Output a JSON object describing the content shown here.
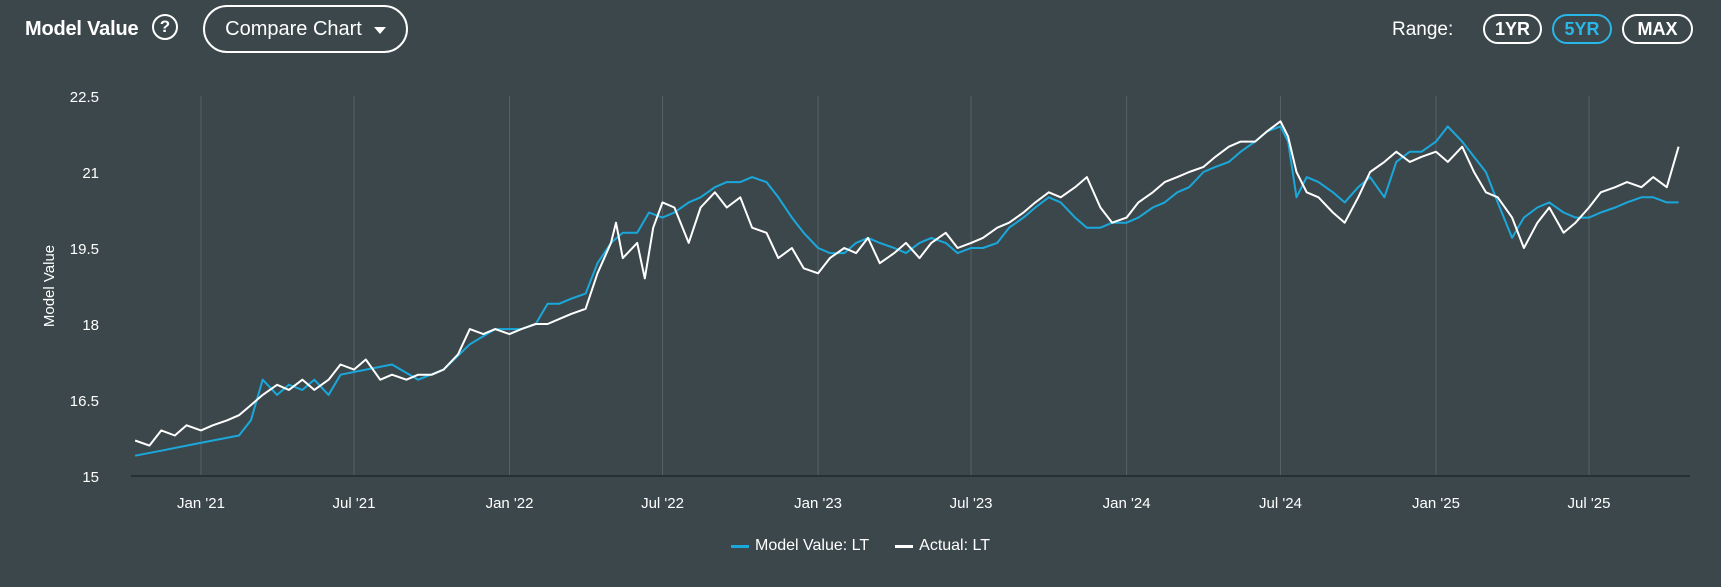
{
  "header": {
    "title": "Model Value",
    "help_glyph": "?",
    "compare_label": "Compare Chart",
    "range_label": "Range:",
    "range_options": [
      "1YR",
      "5YR",
      "MAX"
    ],
    "range_selected": "5YR"
  },
  "colors": {
    "background": "#3c474b",
    "model": "#1aa8dc",
    "actual": "#ffffff",
    "grid": "#55616a"
  },
  "chart_data": {
    "type": "line",
    "xlabel": "",
    "ylabel": "Model Value",
    "ylim": [
      15,
      22.5
    ],
    "yticks": [
      "15",
      "16.5",
      "18",
      "19.5",
      "21",
      "22.5"
    ],
    "xticks": [
      "Jan '21",
      "Jul '21",
      "Jan '22",
      "Jul '22",
      "Jan '23",
      "Jul '23",
      "Jan '24",
      "Jul '24",
      "Jan '25",
      "Jul '25"
    ],
    "xtick_dates": [
      "2021-01-01",
      "2021-07-01",
      "2022-01-01",
      "2022-07-01",
      "2023-01-01",
      "2023-07-01",
      "2024-01-01",
      "2024-07-01",
      "2025-01-01",
      "2025-07-01"
    ],
    "grid": "vertical",
    "legend_position": "bottom-center",
    "series": [
      {
        "name": "Model Value: LT",
        "color": "#1aa8dc",
        "points": [
          [
            "2020-10-15",
            15.4
          ],
          [
            "2020-11-15",
            15.5
          ],
          [
            "2020-12-15",
            15.6
          ],
          [
            "2021-01-15",
            15.7
          ],
          [
            "2021-02-15",
            15.8
          ],
          [
            "2021-03-01",
            16.1
          ],
          [
            "2021-03-15",
            16.9
          ],
          [
            "2021-04-01",
            16.6
          ],
          [
            "2021-04-15",
            16.8
          ],
          [
            "2021-05-01",
            16.7
          ],
          [
            "2021-05-15",
            16.9
          ],
          [
            "2021-06-01",
            16.6
          ],
          [
            "2021-06-15",
            17.0
          ],
          [
            "2021-07-15",
            17.1
          ],
          [
            "2021-08-15",
            17.2
          ],
          [
            "2021-09-15",
            16.9
          ],
          [
            "2021-10-15",
            17.1
          ],
          [
            "2021-11-15",
            17.6
          ],
          [
            "2021-12-15",
            17.9
          ],
          [
            "2022-01-15",
            17.9
          ],
          [
            "2022-02-01",
            18.0
          ],
          [
            "2022-02-15",
            18.4
          ],
          [
            "2022-03-01",
            18.4
          ],
          [
            "2022-03-15",
            18.5
          ],
          [
            "2022-04-01",
            18.6
          ],
          [
            "2022-04-15",
            19.2
          ],
          [
            "2022-05-01",
            19.6
          ],
          [
            "2022-05-15",
            19.8
          ],
          [
            "2022-06-01",
            19.8
          ],
          [
            "2022-06-15",
            20.2
          ],
          [
            "2022-07-01",
            20.1
          ],
          [
            "2022-07-15",
            20.2
          ],
          [
            "2022-08-01",
            20.4
          ],
          [
            "2022-08-15",
            20.5
          ],
          [
            "2022-09-01",
            20.7
          ],
          [
            "2022-09-15",
            20.8
          ],
          [
            "2022-10-01",
            20.8
          ],
          [
            "2022-10-15",
            20.9
          ],
          [
            "2022-11-01",
            20.8
          ],
          [
            "2022-11-15",
            20.5
          ],
          [
            "2022-12-01",
            20.1
          ],
          [
            "2022-12-15",
            19.8
          ],
          [
            "2023-01-01",
            19.5
          ],
          [
            "2023-01-15",
            19.4
          ],
          [
            "2023-02-01",
            19.4
          ],
          [
            "2023-02-15",
            19.6
          ],
          [
            "2023-03-01",
            19.7
          ],
          [
            "2023-03-15",
            19.6
          ],
          [
            "2023-04-01",
            19.5
          ],
          [
            "2023-04-15",
            19.4
          ],
          [
            "2023-05-01",
            19.6
          ],
          [
            "2023-05-15",
            19.7
          ],
          [
            "2023-06-01",
            19.6
          ],
          [
            "2023-06-15",
            19.4
          ],
          [
            "2023-07-01",
            19.5
          ],
          [
            "2023-07-15",
            19.5
          ],
          [
            "2023-08-01",
            19.6
          ],
          [
            "2023-08-15",
            19.9
          ],
          [
            "2023-09-01",
            20.1
          ],
          [
            "2023-09-15",
            20.3
          ],
          [
            "2023-10-01",
            20.5
          ],
          [
            "2023-10-15",
            20.4
          ],
          [
            "2023-11-01",
            20.1
          ],
          [
            "2023-11-15",
            19.9
          ],
          [
            "2023-12-01",
            19.9
          ],
          [
            "2023-12-15",
            20.0
          ],
          [
            "2024-01-01",
            20.0
          ],
          [
            "2024-01-15",
            20.1
          ],
          [
            "2024-02-01",
            20.3
          ],
          [
            "2024-02-15",
            20.4
          ],
          [
            "2024-03-01",
            20.6
          ],
          [
            "2024-03-15",
            20.7
          ],
          [
            "2024-04-01",
            21.0
          ],
          [
            "2024-04-15",
            21.1
          ],
          [
            "2024-05-01",
            21.2
          ],
          [
            "2024-05-15",
            21.4
          ],
          [
            "2024-06-01",
            21.6
          ],
          [
            "2024-06-15",
            21.8
          ],
          [
            "2024-07-01",
            21.9
          ],
          [
            "2024-07-10",
            21.6
          ],
          [
            "2024-07-20",
            20.5
          ],
          [
            "2024-08-01",
            20.9
          ],
          [
            "2024-08-15",
            20.8
          ],
          [
            "2024-09-01",
            20.6
          ],
          [
            "2024-09-15",
            20.4
          ],
          [
            "2024-10-01",
            20.7
          ],
          [
            "2024-10-15",
            20.9
          ],
          [
            "2024-11-01",
            20.5
          ],
          [
            "2024-11-15",
            21.2
          ],
          [
            "2024-12-01",
            21.4
          ],
          [
            "2024-12-15",
            21.4
          ],
          [
            "2025-01-01",
            21.6
          ],
          [
            "2025-01-15",
            21.9
          ],
          [
            "2025-02-01",
            21.6
          ],
          [
            "2025-02-15",
            21.3
          ],
          [
            "2025-03-01",
            21.0
          ],
          [
            "2025-03-15",
            20.4
          ],
          [
            "2025-04-01",
            19.7
          ],
          [
            "2025-04-15",
            20.1
          ],
          [
            "2025-05-01",
            20.3
          ],
          [
            "2025-05-15",
            20.4
          ],
          [
            "2025-06-01",
            20.2
          ],
          [
            "2025-06-15",
            20.1
          ],
          [
            "2025-07-01",
            20.1
          ],
          [
            "2025-07-15",
            20.2
          ],
          [
            "2025-08-01",
            20.3
          ],
          [
            "2025-08-15",
            20.4
          ],
          [
            "2025-09-01",
            20.5
          ],
          [
            "2025-09-15",
            20.5
          ],
          [
            "2025-10-01",
            20.4
          ],
          [
            "2025-10-15",
            20.4
          ]
        ]
      },
      {
        "name": "Actual: LT",
        "color": "#ffffff",
        "points": [
          [
            "2020-10-15",
            15.7
          ],
          [
            "2020-11-01",
            15.6
          ],
          [
            "2020-11-15",
            15.9
          ],
          [
            "2020-12-01",
            15.8
          ],
          [
            "2020-12-15",
            16.0
          ],
          [
            "2021-01-01",
            15.9
          ],
          [
            "2021-01-15",
            16.0
          ],
          [
            "2021-02-01",
            16.1
          ],
          [
            "2021-02-15",
            16.2
          ],
          [
            "2021-03-01",
            16.4
          ],
          [
            "2021-03-15",
            16.6
          ],
          [
            "2021-04-01",
            16.8
          ],
          [
            "2021-04-15",
            16.7
          ],
          [
            "2021-05-01",
            16.9
          ],
          [
            "2021-05-15",
            16.7
          ],
          [
            "2021-06-01",
            16.9
          ],
          [
            "2021-06-15",
            17.2
          ],
          [
            "2021-07-01",
            17.1
          ],
          [
            "2021-07-15",
            17.3
          ],
          [
            "2021-08-01",
            16.9
          ],
          [
            "2021-08-15",
            17.0
          ],
          [
            "2021-09-01",
            16.9
          ],
          [
            "2021-09-15",
            17.0
          ],
          [
            "2021-10-01",
            17.0
          ],
          [
            "2021-10-15",
            17.1
          ],
          [
            "2021-11-01",
            17.4
          ],
          [
            "2021-11-15",
            17.9
          ],
          [
            "2021-12-01",
            17.8
          ],
          [
            "2021-12-15",
            17.9
          ],
          [
            "2022-01-01",
            17.8
          ],
          [
            "2022-01-15",
            17.9
          ],
          [
            "2022-02-01",
            18.0
          ],
          [
            "2022-02-15",
            18.0
          ],
          [
            "2022-03-01",
            18.1
          ],
          [
            "2022-03-15",
            18.2
          ],
          [
            "2022-04-01",
            18.3
          ],
          [
            "2022-04-15",
            19.0
          ],
          [
            "2022-05-01",
            19.6
          ],
          [
            "2022-05-07",
            20.0
          ],
          [
            "2022-05-15",
            19.3
          ],
          [
            "2022-06-01",
            19.6
          ],
          [
            "2022-06-10",
            18.9
          ],
          [
            "2022-06-20",
            19.9
          ],
          [
            "2022-07-01",
            20.4
          ],
          [
            "2022-07-15",
            20.3
          ],
          [
            "2022-08-01",
            19.6
          ],
          [
            "2022-08-15",
            20.3
          ],
          [
            "2022-09-01",
            20.6
          ],
          [
            "2022-09-15",
            20.3
          ],
          [
            "2022-10-01",
            20.5
          ],
          [
            "2022-10-15",
            19.9
          ],
          [
            "2022-11-01",
            19.8
          ],
          [
            "2022-11-15",
            19.3
          ],
          [
            "2022-12-01",
            19.5
          ],
          [
            "2022-12-15",
            19.1
          ],
          [
            "2023-01-01",
            19.0
          ],
          [
            "2023-01-15",
            19.3
          ],
          [
            "2023-02-01",
            19.5
          ],
          [
            "2023-02-15",
            19.4
          ],
          [
            "2023-03-01",
            19.7
          ],
          [
            "2023-03-15",
            19.2
          ],
          [
            "2023-04-01",
            19.4
          ],
          [
            "2023-04-15",
            19.6
          ],
          [
            "2023-05-01",
            19.3
          ],
          [
            "2023-05-15",
            19.6
          ],
          [
            "2023-06-01",
            19.8
          ],
          [
            "2023-06-15",
            19.5
          ],
          [
            "2023-07-01",
            19.6
          ],
          [
            "2023-07-15",
            19.7
          ],
          [
            "2023-08-01",
            19.9
          ],
          [
            "2023-08-15",
            20.0
          ],
          [
            "2023-09-01",
            20.2
          ],
          [
            "2023-09-15",
            20.4
          ],
          [
            "2023-10-01",
            20.6
          ],
          [
            "2023-10-15",
            20.5
          ],
          [
            "2023-11-01",
            20.7
          ],
          [
            "2023-11-15",
            20.9
          ],
          [
            "2023-12-01",
            20.3
          ],
          [
            "2023-12-15",
            20.0
          ],
          [
            "2024-01-01",
            20.1
          ],
          [
            "2024-01-15",
            20.4
          ],
          [
            "2024-02-01",
            20.6
          ],
          [
            "2024-02-15",
            20.8
          ],
          [
            "2024-03-01",
            20.9
          ],
          [
            "2024-03-15",
            21.0
          ],
          [
            "2024-04-01",
            21.1
          ],
          [
            "2024-04-15",
            21.3
          ],
          [
            "2024-05-01",
            21.5
          ],
          [
            "2024-05-15",
            21.6
          ],
          [
            "2024-06-01",
            21.6
          ],
          [
            "2024-06-15",
            21.8
          ],
          [
            "2024-07-01",
            22.0
          ],
          [
            "2024-07-10",
            21.7
          ],
          [
            "2024-07-20",
            21.0
          ],
          [
            "2024-08-01",
            20.6
          ],
          [
            "2024-08-15",
            20.5
          ],
          [
            "2024-09-01",
            20.2
          ],
          [
            "2024-09-15",
            20.0
          ],
          [
            "2024-10-01",
            20.5
          ],
          [
            "2024-10-15",
            21.0
          ],
          [
            "2024-11-01",
            21.2
          ],
          [
            "2024-11-15",
            21.4
          ],
          [
            "2024-12-01",
            21.2
          ],
          [
            "2024-12-15",
            21.3
          ],
          [
            "2025-01-01",
            21.4
          ],
          [
            "2025-01-15",
            21.2
          ],
          [
            "2025-02-01",
            21.5
          ],
          [
            "2025-02-15",
            21.0
          ],
          [
            "2025-03-01",
            20.6
          ],
          [
            "2025-03-15",
            20.5
          ],
          [
            "2025-04-01",
            20.1
          ],
          [
            "2025-04-15",
            19.5
          ],
          [
            "2025-05-01",
            20.0
          ],
          [
            "2025-05-15",
            20.3
          ],
          [
            "2025-06-01",
            19.8
          ],
          [
            "2025-06-15",
            20.0
          ],
          [
            "2025-07-01",
            20.3
          ],
          [
            "2025-07-15",
            20.6
          ],
          [
            "2025-08-01",
            20.7
          ],
          [
            "2025-08-15",
            20.8
          ],
          [
            "2025-09-01",
            20.7
          ],
          [
            "2025-09-15",
            20.9
          ],
          [
            "2025-10-01",
            20.7
          ],
          [
            "2025-10-15",
            21.5
          ]
        ]
      }
    ]
  }
}
